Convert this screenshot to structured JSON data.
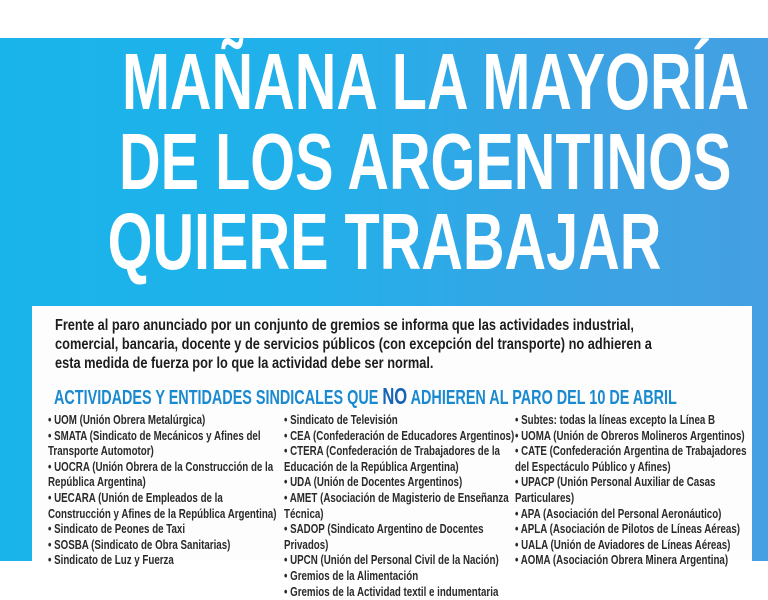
{
  "headline": [
    "MAÑANA LA MAYORÍA",
    "DE LOS ARGENTINOS",
    "QUIERE TRABAJAR"
  ],
  "intro": "Frente al paro anunciado por un conjunto de gremios se informa que las actividades industrial, comercial, bancaria, docente y de servicios públicos (con excepción del transporte) no adhieren a esta medida de fuerza por lo que la actividad debe ser normal.",
  "section": {
    "before": "ACTIVIDADES Y  ENTIDADES SINDICALES QUE ",
    "emphasis": "NO",
    "after": " ADHIEREN AL PARO DEL 10 DE ABRIL"
  },
  "columns": [
    [
      "• UOM (Unión Obrera Metalúrgica)",
      "• SMATA (Sindicato de Mecánicos y Afines del Transporte Automotor)",
      "• UOCRA (Unión Obrera de la Construcción de la República Argentina)",
      "• UECARA (Unión de Empleados de la Construcción y Afines de la República Argentina)",
      "• Sindicato de Peones de Taxi",
      "• SOSBA (Sindicato de Obra Sanitarias)",
      "• Sindicato de Luz y Fuerza"
    ],
    [
      "• Sindicato de Televisión",
      "• CEA (Confederación de Educadores Argentinos)",
      "• CTERA (Confederación de Trabajadores de la Educación de la República Argentina)",
      "• UDA (Unión de Docentes Argentinos)",
      "• AMET (Asociación de Magisterio de Enseñanza Técnica)",
      "• SADOP (Sindicato Argentino de Docentes Privados)",
      "• UPCN (Unión del Personal Civil de la Nación)",
      "• Gremios de la Alimentación",
      "• Gremios de la Actividad textil e indumentaria"
    ],
    [
      "• Subtes: todas la líneas excepto la Línea B",
      "• UOMA (Unión de Obreros Molineros Argentinos)",
      "• CATE (Confederación Argentina de Trabajadores del Espectáculo Público y Afines)",
      "• UPACP (Unión Personal Auxiliar de Casas Particulares)",
      "• APA (Asociación del Personal Aeronáutico)",
      "• APLA (Asociación de Pilotos de Líneas Aéreas)",
      "• UALA (Unión de Aviadores de Líneas Aéreas)",
      "• AOMA (Asociación Obrera Minera Argentina)"
    ]
  ],
  "colors": {
    "frame": "#22b0ea",
    "heading": "#1a8ad0",
    "text": "#1d1d1d"
  }
}
